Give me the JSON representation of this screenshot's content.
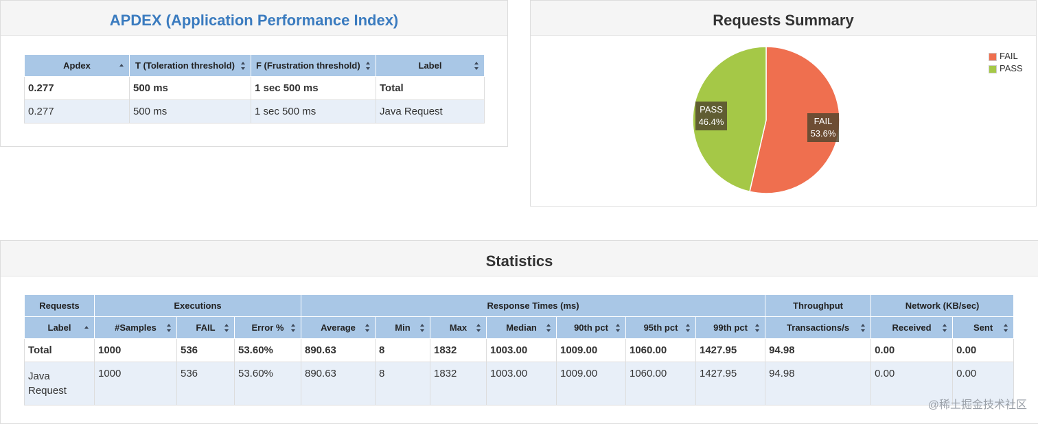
{
  "apdex": {
    "title": "APDEX (Application Performance Index)",
    "headers": [
      "Apdex",
      "T (Toleration threshold)",
      "F (Frustration threshold)",
      "Label"
    ],
    "rows": [
      [
        "0.277",
        "500 ms",
        "1 sec 500 ms",
        "Total"
      ],
      [
        "0.277",
        "500 ms",
        "1 sec 500 ms",
        "Java Request"
      ]
    ]
  },
  "summary": {
    "title": "Requests Summary",
    "legend": [
      {
        "label": "FAIL",
        "color": "#ef6f4f"
      },
      {
        "label": "PASS",
        "color": "#a5c847"
      }
    ],
    "slices": [
      {
        "label": "FAIL",
        "pct": "53.6%",
        "value": 53.6,
        "color": "#ef6f4f"
      },
      {
        "label": "PASS",
        "pct": "46.4%",
        "value": 46.4,
        "color": "#a5c847"
      }
    ]
  },
  "chart_data": {
    "type": "pie",
    "title": "Requests Summary",
    "categories": [
      "FAIL",
      "PASS"
    ],
    "values": [
      53.6,
      46.4
    ],
    "legend": "top-right"
  },
  "stats": {
    "title": "Statistics",
    "group_headers": [
      "Requests",
      "Executions",
      "Response Times (ms)",
      "Throughput",
      "Network (KB/sec)"
    ],
    "headers": [
      "Label",
      "#Samples",
      "FAIL",
      "Error %",
      "Average",
      "Min",
      "Max",
      "Median",
      "90th pct",
      "95th pct",
      "99th pct",
      "Transactions/s",
      "Received",
      "Sent"
    ],
    "rows": [
      [
        "Total",
        "1000",
        "536",
        "53.60%",
        "890.63",
        "8",
        "1832",
        "1003.00",
        "1009.00",
        "1060.00",
        "1427.95",
        "94.98",
        "0.00",
        "0.00"
      ],
      [
        "Java Request",
        "1000",
        "536",
        "53.60%",
        "890.63",
        "8",
        "1832",
        "1003.00",
        "1009.00",
        "1060.00",
        "1427.95",
        "94.98",
        "0.00",
        "0.00"
      ]
    ]
  },
  "watermark": "@稀土掘金技术社区"
}
